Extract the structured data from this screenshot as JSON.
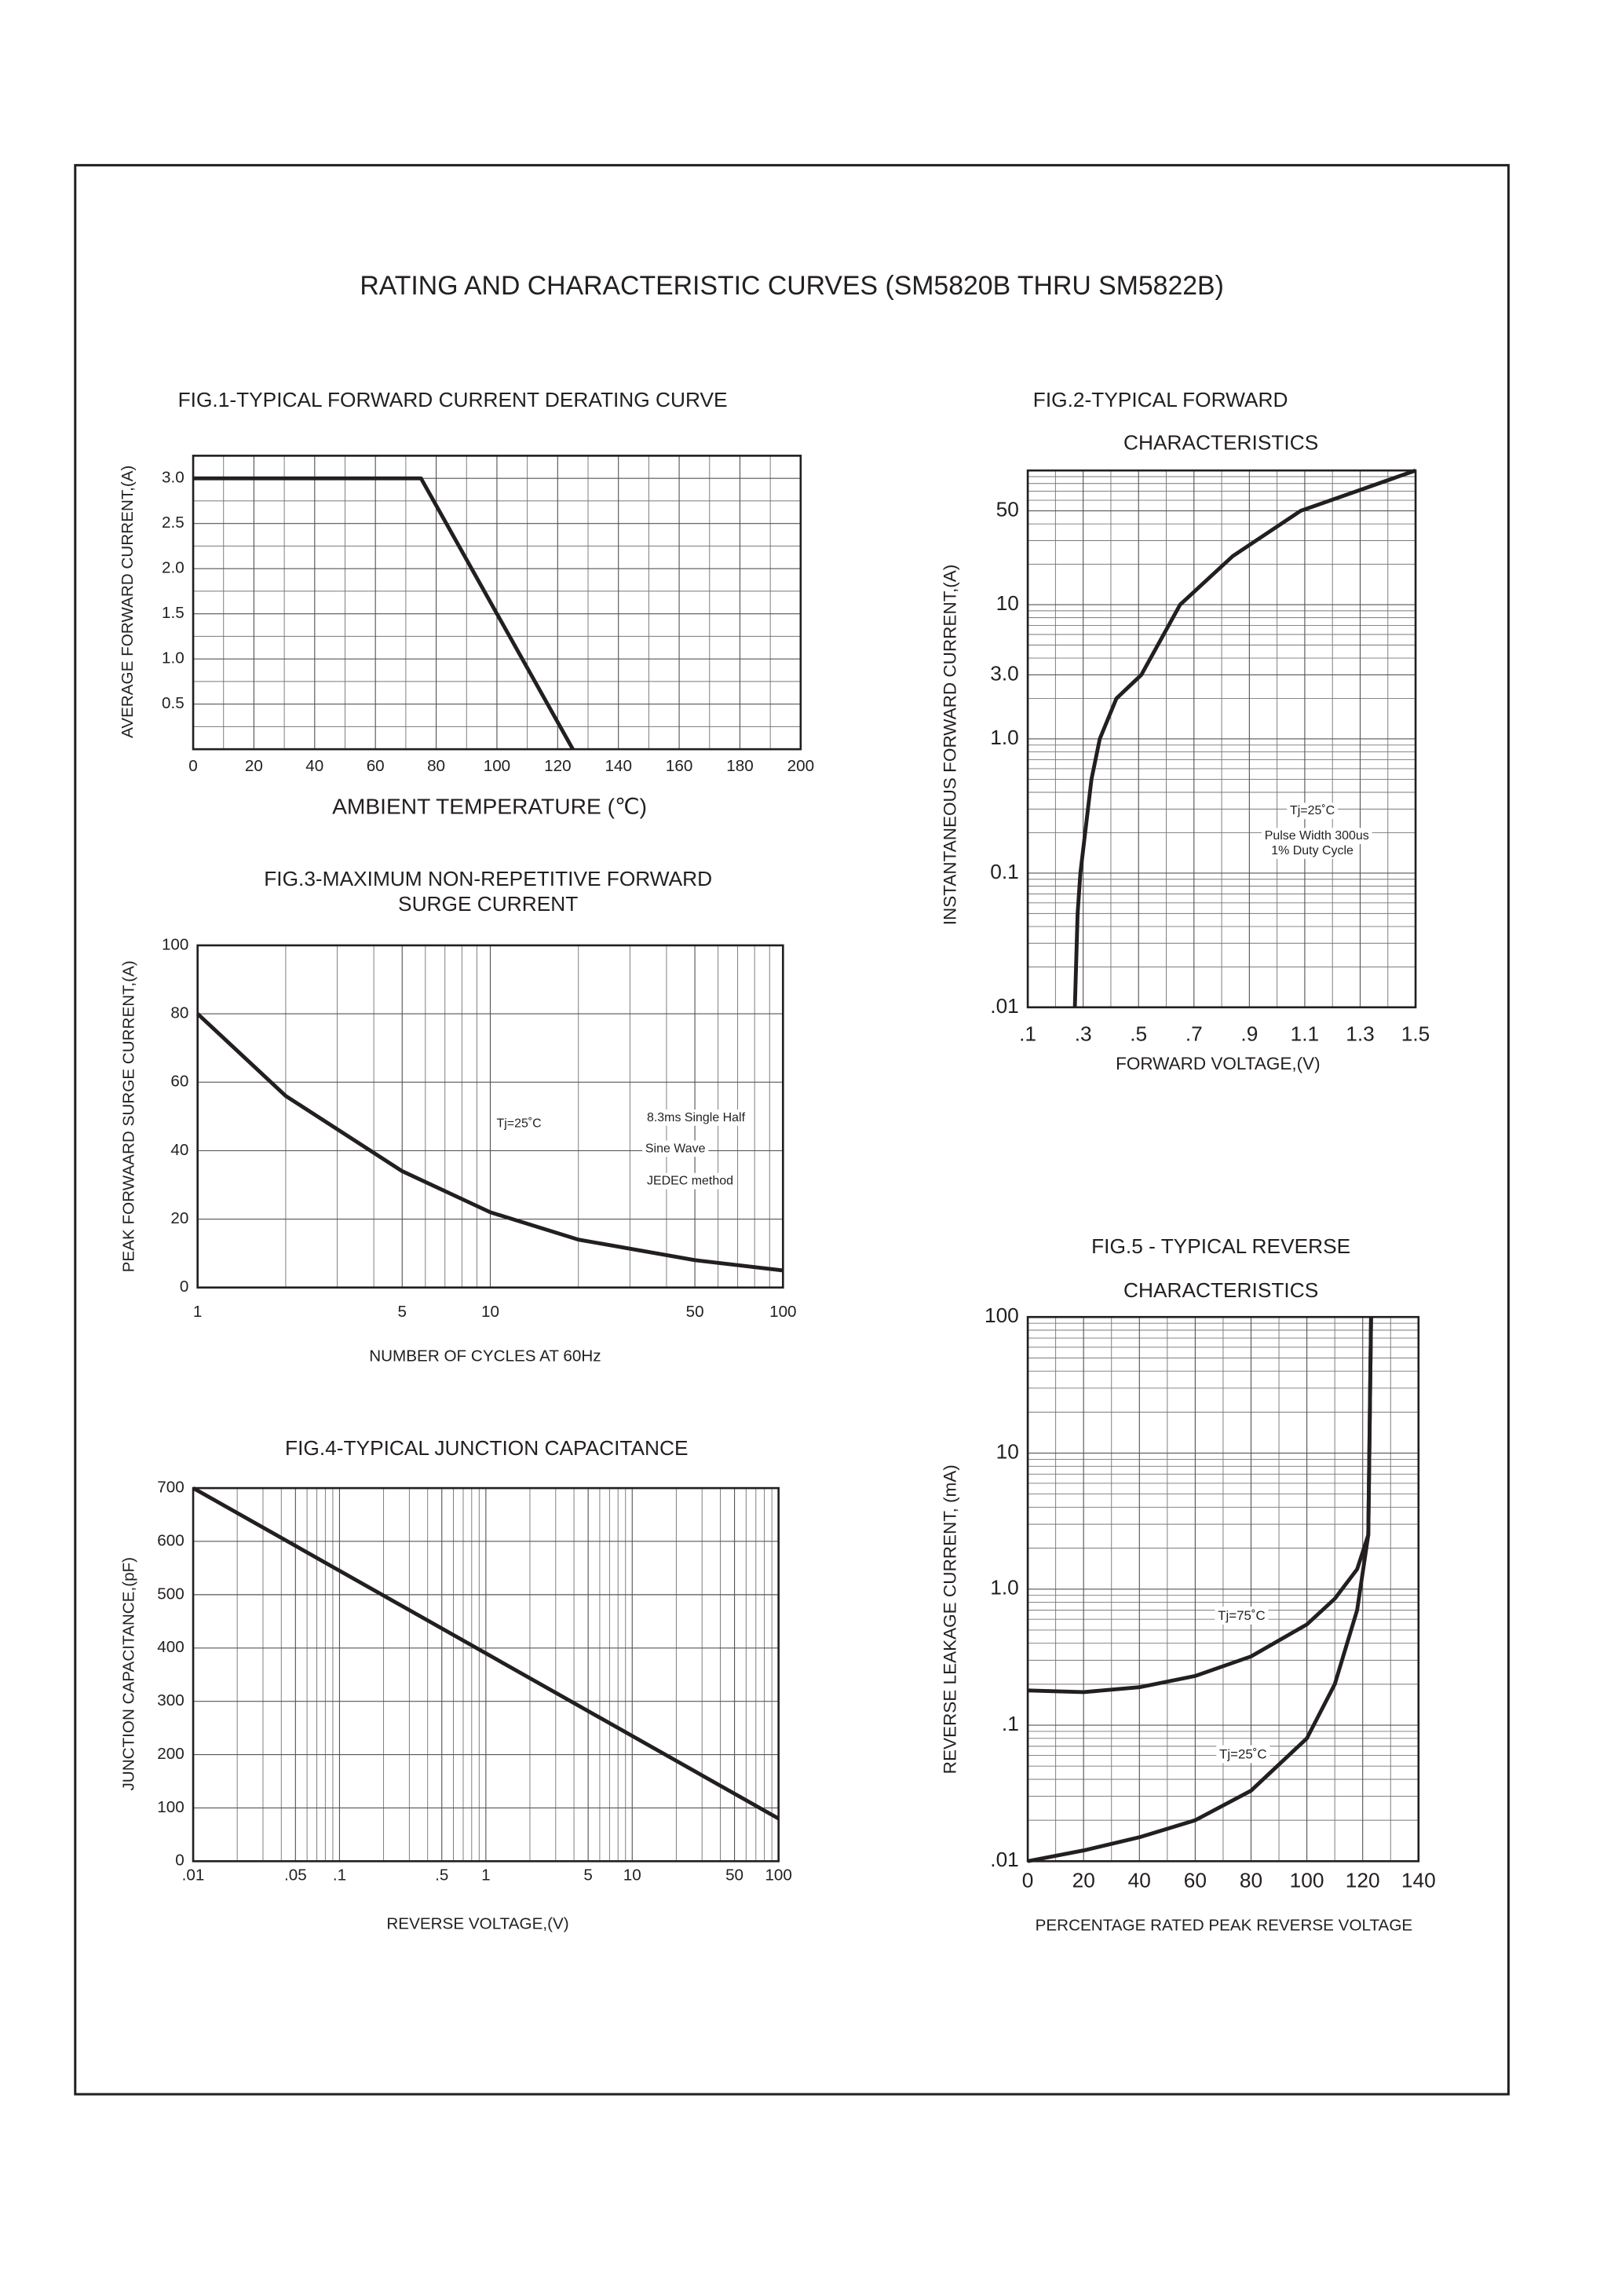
{
  "title": "RATING AND CHARACTERISTIC CURVES (SM5820B THRU SM5822B)",
  "chart_data": [
    {
      "type": "line",
      "title": [
        "FIG.1-TYPICAL FORWARD CURRENT DERATING CURVE"
      ],
      "xlabel": "AMBIENT TEMPERATURE (℃)",
      "ylabel": "AVERAGE FORWARD CURRENT,(A)",
      "x": [
        0,
        75,
        125
      ],
      "values": [
        3,
        3,
        0
      ],
      "color": "#231f20",
      "xlim": [
        0,
        200
      ],
      "ylim": [
        0,
        3.25
      ],
      "xticks": [
        0,
        20,
        40,
        60,
        80,
        100,
        120,
        140,
        160,
        180,
        200
      ],
      "yticks": [
        0.5,
        {
          "value": 1,
          "label": "1.0"
        },
        1.5,
        {
          "value": 2,
          "label": "2.0"
        },
        2.5,
        {
          "value": 3,
          "label": "3.0"
        }
      ],
      "xscale": "linear",
      "yscale": "linear",
      "grid": true,
      "xminor": true,
      "yminor": true
    },
    {
      "type": "line",
      "title": [
        "FIG.2-TYPICAL FORWARD",
        "CHARACTERISTICS"
      ],
      "xlabel": "FORWARD VOLTAGE,(V)",
      "ylabel": "INSTANTANEOUS FORWARD CURRENT,(A)",
      "x": [
        0.27,
        0.28,
        0.29,
        0.33,
        0.36,
        0.42,
        0.51,
        0.65,
        0.84,
        1.085,
        1.5
      ],
      "values": [
        0.01,
        0.05,
        0.1,
        0.5,
        1,
        2,
        3,
        10,
        23,
        50,
        100
      ],
      "color": "#231f20",
      "xlim": [
        0.1,
        1.5
      ],
      "ylim": [
        0.01,
        100
      ],
      "xticks": [
        {
          "value": 0.1,
          "label": ".1"
        },
        {
          "value": 0.3,
          "label": ".3"
        },
        {
          "value": 0.5,
          "label": ".5"
        },
        {
          "value": 0.7,
          "label": ".7"
        },
        {
          "value": 0.9,
          "label": ".9"
        },
        1.1,
        1.3,
        1.5
      ],
      "yticks": [
        {
          "value": 0.01,
          "label": ".01"
        },
        0.1,
        {
          "value": 1,
          "label": "1.0"
        },
        {
          "value": 3,
          "label": "3.0"
        },
        10,
        50
      ],
      "xscale": "linear",
      "yscale": "log",
      "grid": true,
      "xminor": true,
      "yminor": true,
      "annotations": [
        "Tj=25˚C",
        "Pulse Width 300us",
        "1% Duty Cycle"
      ]
    },
    {
      "type": "line",
      "title": [
        "FIG.3-MAXIMUM NON-REPETITIVE FORWARD",
        "SURGE CURRENT"
      ],
      "xlabel": "NUMBER OF CYCLES AT 60Hz",
      "ylabel": "PEAK FORWAARD SURGE CURRENT,(A)",
      "x": [
        1,
        2,
        5,
        10,
        20,
        50,
        100
      ],
      "values": [
        80,
        56,
        34,
        22,
        14,
        8,
        5
      ],
      "color": "#231f20",
      "xlim": [
        1,
        100
      ],
      "ylim": [
        0,
        100
      ],
      "xticks": [
        1,
        5,
        10,
        50,
        100
      ],
      "yticks": [
        0,
        20,
        40,
        60,
        80,
        100
      ],
      "xscale": "log",
      "yscale": "linear",
      "grid": true,
      "xminor": true,
      "yminor": false,
      "annotations": [
        "Tj=25˚C",
        "8.3ms Single Half",
        "Sine Wave",
        "JEDEC method"
      ]
    },
    {
      "type": "line",
      "title": [
        "FIG.4-TYPICAL JUNCTION CAPACITANCE"
      ],
      "xlabel": "REVERSE VOLTAGE,(V)",
      "ylabel": "JUNCTION CAPACITANCE,(pF)",
      "x": [
        0.01,
        0.1,
        1,
        10,
        100
      ],
      "values": [
        700,
        545,
        390,
        235,
        80
      ],
      "color": "#231f20",
      "xlim": [
        0.01,
        100
      ],
      "ylim": [
        0,
        700
      ],
      "xticks": [
        {
          "value": 0.01,
          "label": ".01"
        },
        {
          "value": 0.05,
          "label": ".05"
        },
        {
          "value": 0.1,
          "label": ".1"
        },
        {
          "value": 0.5,
          "label": ".5"
        },
        1,
        5,
        10,
        50,
        100
      ],
      "yticks": [
        0,
        100,
        200,
        300,
        400,
        500,
        600,
        700
      ],
      "xscale": "log",
      "yscale": "linear",
      "grid": true,
      "xminor": true,
      "yminor": false
    },
    {
      "type": "line",
      "title": [
        "FIG.5 - TYPICAL REVERSE",
        "CHARACTERISTICS"
      ],
      "xlabel": "PERCENTAGE RATED PEAK REVERSE VOLTAGE",
      "ylabel": "REVERSE LEAKAGE CURRENT, (mA)",
      "x": [
        0,
        20,
        40,
        60,
        80,
        100,
        110,
        118,
        122,
        123
      ],
      "series": [
        {
          "name": "Tj=75˚C",
          "color": "#231f20",
          "values": [
            0.18,
            0.175,
            0.19,
            0.23,
            0.32,
            0.55,
            0.85,
            1.4,
            2.5,
            100
          ]
        },
        {
          "name": "Tj=25˚C",
          "color": "#231f20",
          "values": [
            0.01,
            0.012,
            0.015,
            0.02,
            0.033,
            0.08,
            0.2,
            0.7,
            2.5,
            100
          ]
        }
      ],
      "xlim": [
        0,
        140
      ],
      "ylim": [
        0.01,
        100
      ],
      "xticks": [
        0,
        20,
        40,
        60,
        80,
        100,
        120,
        140
      ],
      "yticks": [
        {
          "value": 0.01,
          "label": ".01"
        },
        {
          "value": 0.1,
          "label": ".1"
        },
        {
          "value": 1,
          "label": "1.0"
        },
        10,
        100
      ],
      "xscale": "linear",
      "yscale": "log",
      "grid": true,
      "xminor": true,
      "yminor": true
    }
  ]
}
